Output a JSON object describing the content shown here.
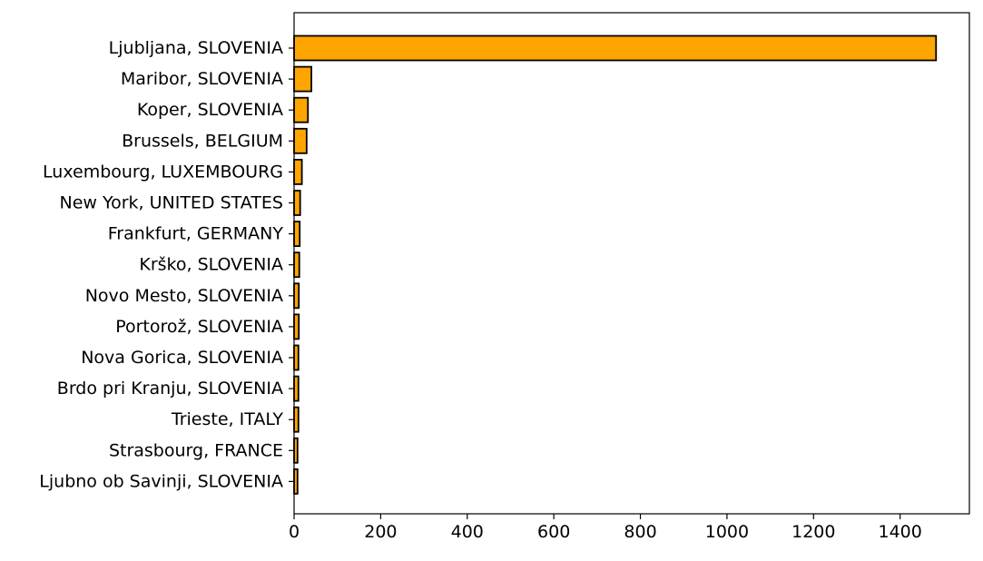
{
  "chart_data": {
    "type": "bar",
    "orientation": "horizontal",
    "categories": [
      "Ljubljana, SLOVENIA",
      "Maribor, SLOVENIA",
      "Koper, SLOVENIA",
      "Brussels, BELGIUM",
      "Luxembourg, LUXEMBOURG",
      "New York, UNITED STATES",
      "Frankfurt, GERMANY",
      "Krško, SLOVENIA",
      "Novo Mesto, SLOVENIA",
      "Portorož, SLOVENIA",
      "Nova Gorica, SLOVENIA",
      "Brdo pri Kranju, SLOVENIA",
      "Trieste, ITALY",
      "Strasbourg, FRANCE",
      "Ljubno ob Savinji, SLOVENIA"
    ],
    "values": [
      1483,
      40,
      32,
      29,
      18,
      14,
      13,
      12,
      11,
      11,
      10,
      10,
      10,
      8,
      8
    ],
    "xlim": [
      0,
      1560
    ],
    "xticks": [
      "0",
      "200",
      "400",
      "600",
      "800",
      "1000",
      "1200",
      "1400"
    ],
    "title": "",
    "xlabel": "",
    "ylabel": "",
    "grid": false,
    "bar_color": "#ffa500",
    "edge_color": "#000000"
  }
}
